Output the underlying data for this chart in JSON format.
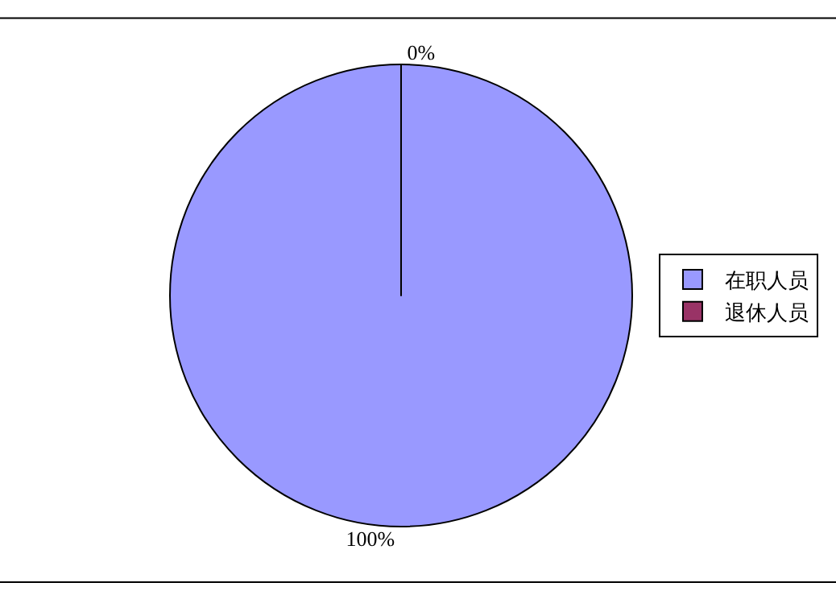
{
  "chart_data": {
    "type": "pie",
    "categories": [
      "在职人员",
      "退休人员"
    ],
    "values": [
      100,
      0
    ],
    "colors": [
      "#9999ff",
      "#993366"
    ],
    "value_labels": [
      "100%",
      "0%"
    ],
    "legend": "right"
  }
}
